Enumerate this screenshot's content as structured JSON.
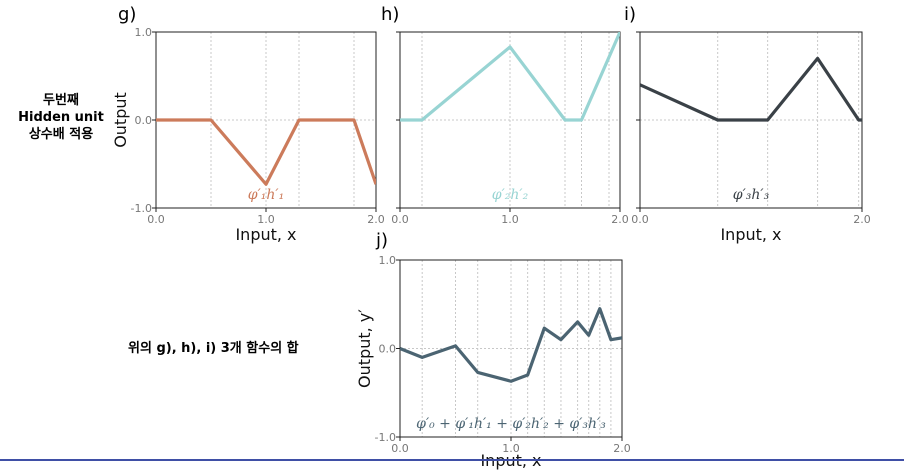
{
  "side_text": {
    "top_lines": [
      "두번째",
      "Hidden unit",
      "상수배 적용"
    ],
    "bottom": "위의 g), h), i) 3개 함수의 합"
  },
  "colors": {
    "g": "#CC7B5B",
    "h": "#98D4D3",
    "i": "#3A4147",
    "j": "#4B6472",
    "grid": "#c8c8c8"
  },
  "chart_data": [
    {
      "id": "g",
      "panel_label": "g)",
      "type": "line",
      "x": [
        0.0,
        0.5,
        1.0,
        1.3,
        1.8,
        2.0
      ],
      "y": [
        0.0,
        0.0,
        -0.73,
        0.0,
        0.0,
        -0.73
      ],
      "xlim": [
        0.0,
        2.0
      ],
      "ylim": [
        -1.0,
        1.0
      ],
      "xticks": [
        "0.0",
        "1.0",
        "2.0"
      ],
      "yticks": [
        "1.0",
        "0.0",
        "-1.0"
      ],
      "vlines": [
        0.5,
        1.0,
        1.3,
        1.8
      ],
      "xlabel": "Input, x",
      "ylabel": "Output",
      "series_label": "φ′₁h′₁",
      "color": "#CC7B5B"
    },
    {
      "id": "h",
      "panel_label": "h)",
      "type": "line",
      "x": [
        0.0,
        0.2,
        1.0,
        1.5,
        1.65,
        2.0
      ],
      "y": [
        0.0,
        0.0,
        0.83,
        0.0,
        0.0,
        1.0
      ],
      "xlim": [
        0.0,
        2.0
      ],
      "ylim": [
        -1.0,
        1.0
      ],
      "xticks": [
        "0.0",
        "1.0",
        "2.0"
      ],
      "yticks": [],
      "vlines": [
        0.2,
        1.0,
        1.5,
        1.65,
        1.9
      ],
      "xlabel": "",
      "ylabel": "",
      "series_label": "φ′₂h′₂",
      "color": "#98D4D3"
    },
    {
      "id": "i",
      "panel_label": "i)",
      "type": "line",
      "x": [
        0.0,
        0.7,
        1.15,
        1.6,
        1.97,
        2.0
      ],
      "y": [
        0.4,
        0.0,
        0.0,
        0.7,
        0.0,
        0.0
      ],
      "xlim": [
        0.0,
        2.0
      ],
      "ylim": [
        -1.0,
        1.0
      ],
      "xticks": [
        "0.0",
        "2.0"
      ],
      "yticks": [],
      "vlines": [
        0.7,
        1.15,
        1.6,
        1.97
      ],
      "xlabel": "Input, x",
      "ylabel": "",
      "series_label": "φ′₃h′₃",
      "color": "#3A4147"
    },
    {
      "id": "j",
      "panel_label": "j)",
      "type": "line",
      "x": [
        0.0,
        0.2,
        0.5,
        0.7,
        1.0,
        1.15,
        1.3,
        1.45,
        1.6,
        1.7,
        1.8,
        1.9,
        2.0
      ],
      "y": [
        0.0,
        -0.1,
        0.03,
        -0.27,
        -0.37,
        -0.3,
        0.23,
        0.1,
        0.3,
        0.15,
        0.45,
        0.1,
        0.12
      ],
      "xlim": [
        0.0,
        2.0
      ],
      "ylim": [
        -1.0,
        1.0
      ],
      "xticks": [
        "0.0",
        "1.0",
        "2.0"
      ],
      "yticks": [
        "1.0",
        "0.0",
        "-1.0"
      ],
      "vlines": [
        0.2,
        0.5,
        0.7,
        1.0,
        1.15,
        1.3,
        1.45,
        1.6,
        1.7,
        1.8,
        1.9
      ],
      "xlabel": "Input, x",
      "ylabel": "Output, y′",
      "series_label": "φ′₀ + φ′₁h′₁ + φ′₂h′₂ + φ′₃h′₃",
      "color": "#4B6472"
    }
  ]
}
